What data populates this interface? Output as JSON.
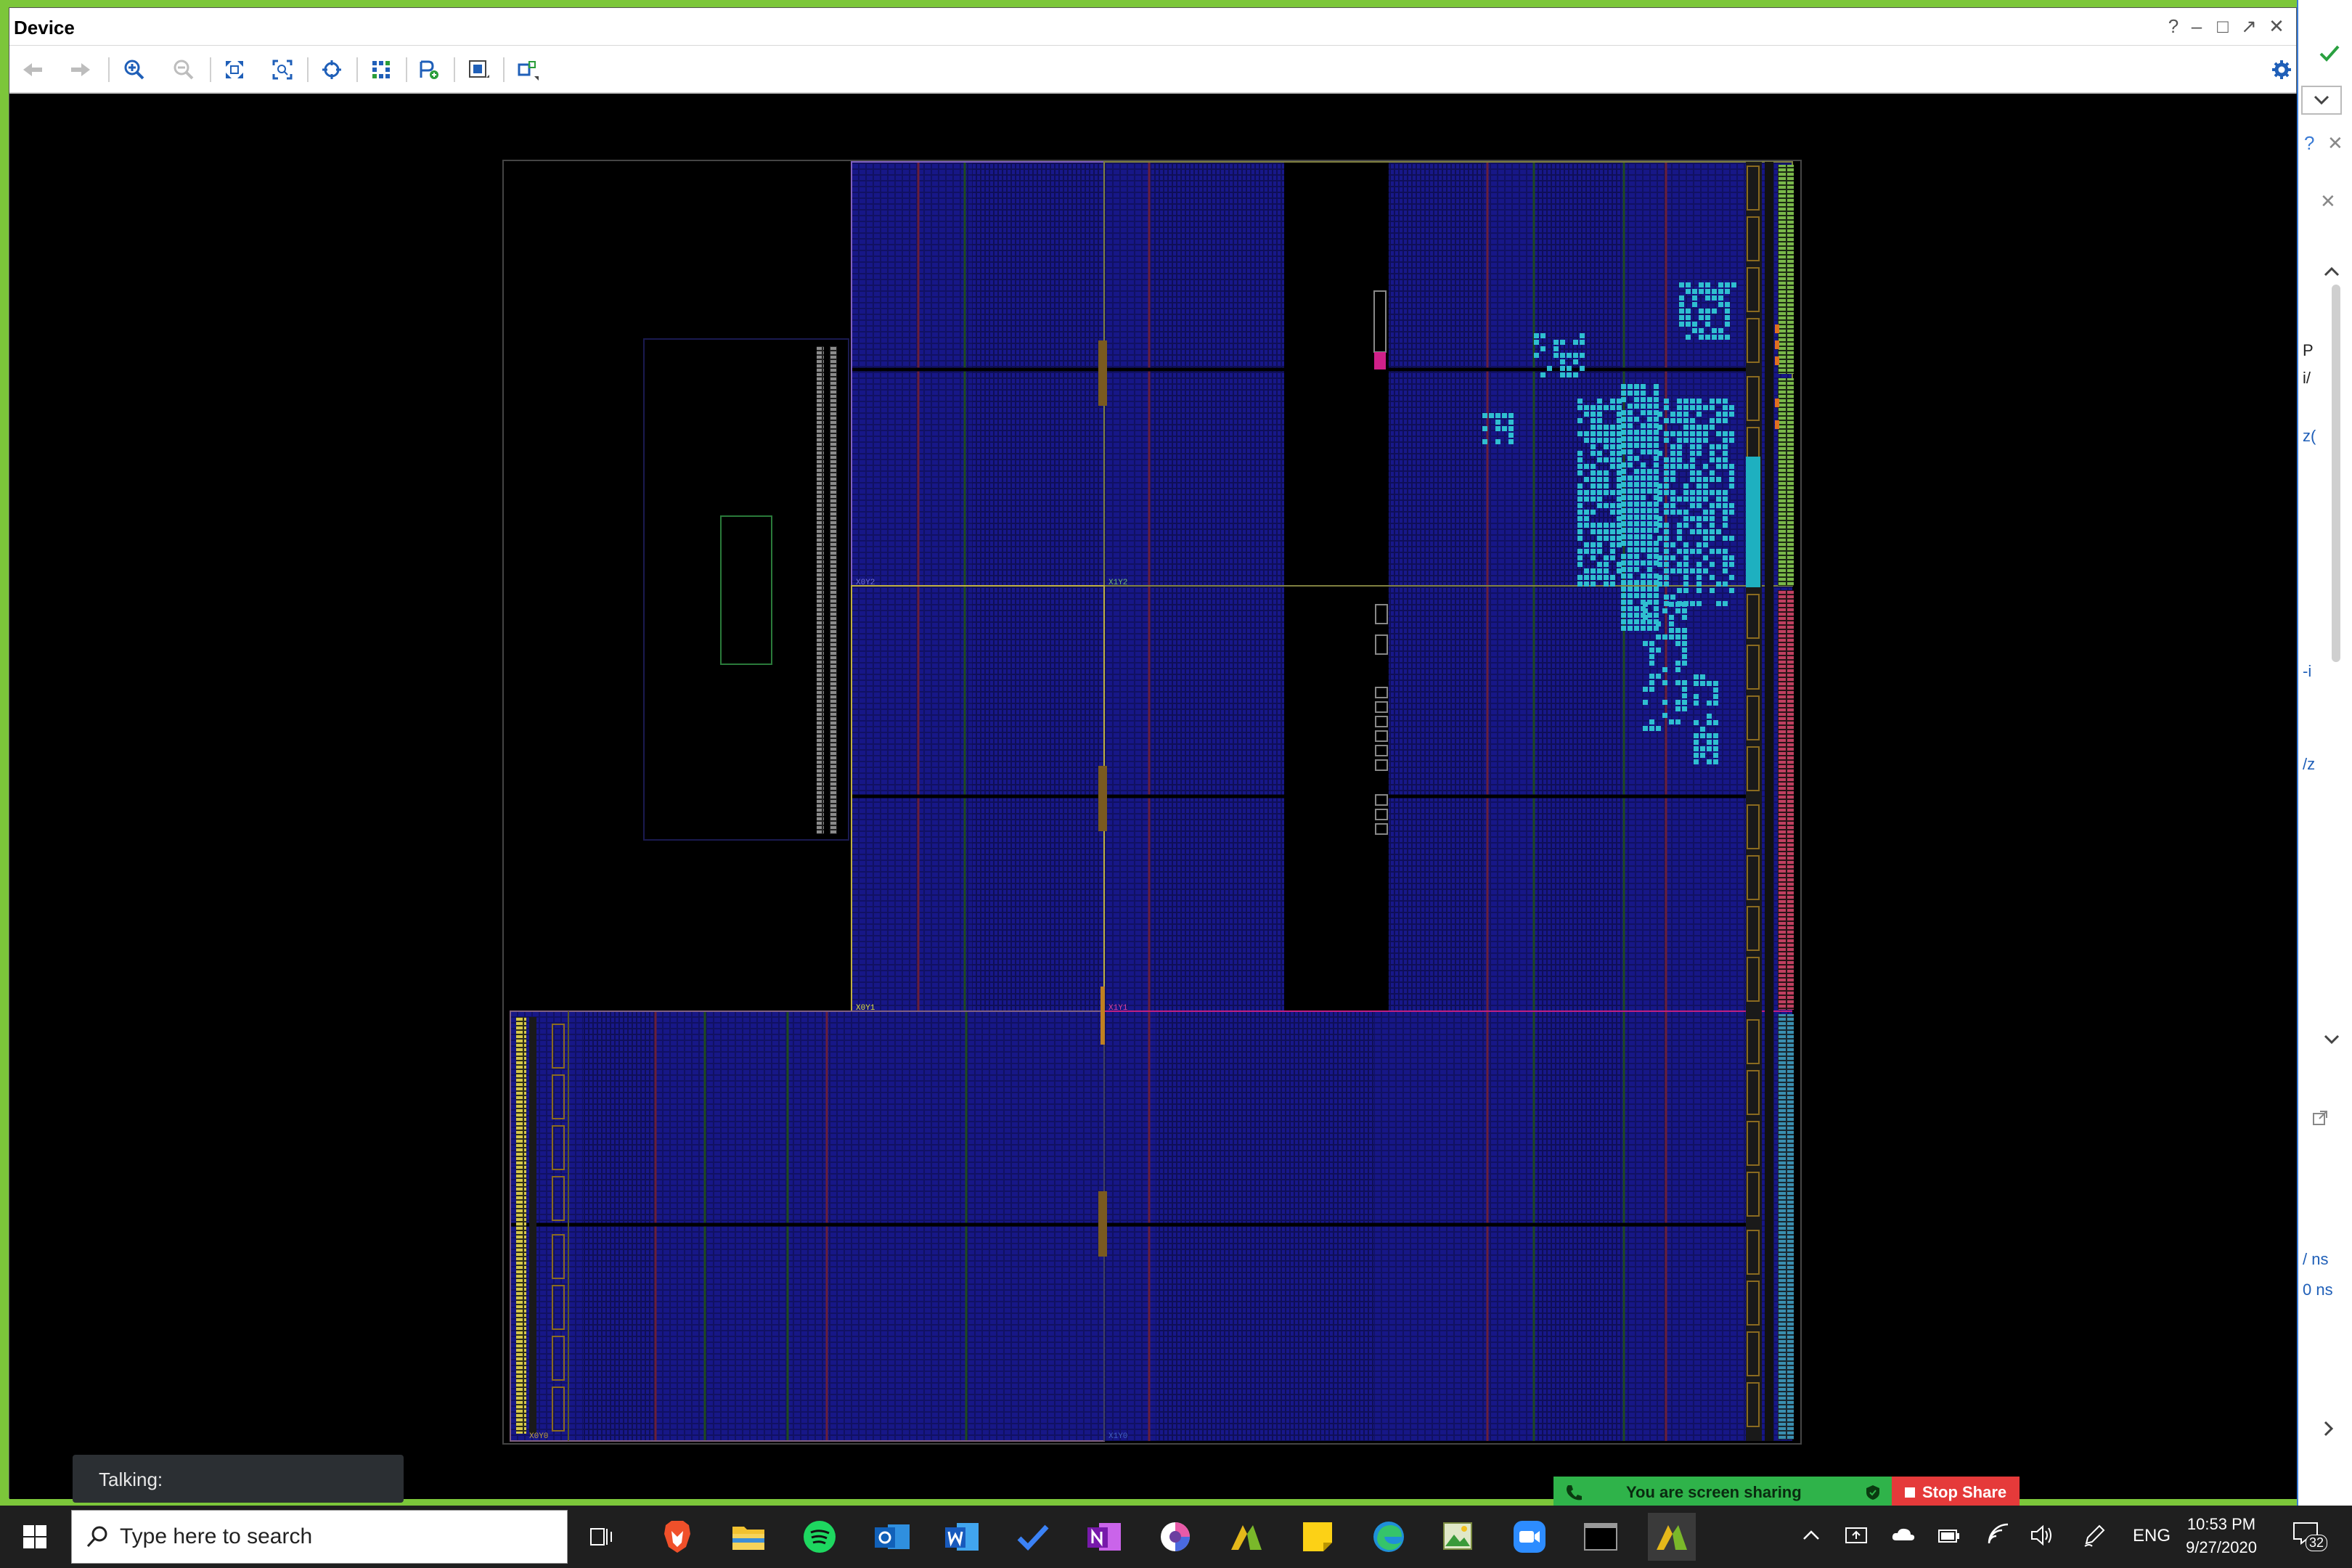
{
  "window": {
    "title": "Device",
    "help": "?",
    "minimize": "–",
    "restore": "□",
    "float": "↗",
    "close": "✕"
  },
  "toolbar": {
    "buttons": [
      "back",
      "forward",
      "zoom-in",
      "zoom-out",
      "zoom-fit",
      "zoom-selection",
      "auto-fit",
      "routing-resources",
      "add-pblock",
      "draw-pblock",
      "drag-select"
    ]
  },
  "device": {
    "regions": [
      "X0Y2",
      "X1Y2",
      "X0Y1",
      "X1Y1",
      "X0Y0",
      "X1Y0"
    ]
  },
  "right_panel": {
    "help": "?",
    "close": "✕",
    "close2": "✕",
    "snippets": [
      "P",
      "i/",
      "z(",
      "-i",
      "/z",
      "/ ns",
      "0 ns"
    ]
  },
  "talking": {
    "label": "Talking:"
  },
  "screen_share": {
    "message": "You are screen sharing",
    "stop_label": "Stop Share"
  },
  "taskbar": {
    "search_placeholder": "Type here to search",
    "language": "ENG",
    "time": "10:53 PM",
    "date": "9/27/2020",
    "notification_count": "32"
  },
  "colors": {
    "accent_green": "#7cc63a",
    "fabric_blue": "#16167a",
    "placed_cells": "#2fbfd0",
    "share_green": "#2fb34a",
    "stop_red": "#e53a3a"
  }
}
